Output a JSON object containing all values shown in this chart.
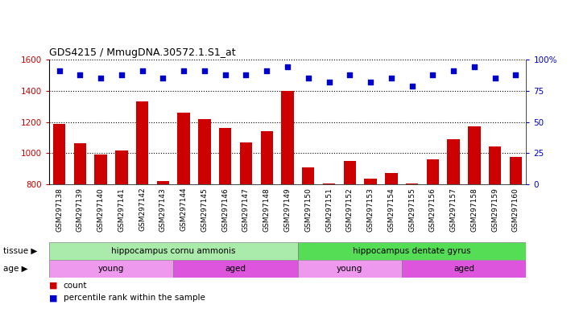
{
  "title": "GDS4215 / MmugDNA.30572.1.S1_at",
  "samples": [
    "GSM297138",
    "GSM297139",
    "GSM297140",
    "GSM297141",
    "GSM297142",
    "GSM297143",
    "GSM297144",
    "GSM297145",
    "GSM297146",
    "GSM297147",
    "GSM297148",
    "GSM297149",
    "GSM297150",
    "GSM297151",
    "GSM297152",
    "GSM297153",
    "GSM297154",
    "GSM297155",
    "GSM297156",
    "GSM297157",
    "GSM297158",
    "GSM297159",
    "GSM297160"
  ],
  "counts": [
    1190,
    1065,
    990,
    1020,
    1330,
    820,
    1260,
    1220,
    1160,
    1070,
    1140,
    1400,
    910,
    805,
    950,
    835,
    875,
    808,
    960,
    1090,
    1170,
    1045,
    975
  ],
  "percentiles": [
    91,
    88,
    85,
    88,
    91,
    85,
    91,
    91,
    88,
    88,
    91,
    94,
    85,
    82,
    88,
    82,
    85,
    79,
    88,
    91,
    94,
    85,
    88
  ],
  "ylim_left": [
    800,
    1600
  ],
  "ylim_right": [
    0,
    100
  ],
  "yticks_left": [
    800,
    1000,
    1200,
    1400,
    1600
  ],
  "yticks_right": [
    0,
    25,
    50,
    75,
    100
  ],
  "bar_color": "#cc0000",
  "dot_color": "#0000cc",
  "tissue_groups": [
    {
      "label": "hippocampus cornu ammonis",
      "start": 0,
      "end": 12,
      "color": "#aaeaaa"
    },
    {
      "label": "hippocampus dentate gyrus",
      "start": 12,
      "end": 23,
      "color": "#55dd55"
    }
  ],
  "age_groups": [
    {
      "label": "young",
      "start": 0,
      "end": 6,
      "color": "#ee99ee"
    },
    {
      "label": "aged",
      "start": 6,
      "end": 12,
      "color": "#dd55dd"
    },
    {
      "label": "young",
      "start": 12,
      "end": 17,
      "color": "#ee99ee"
    },
    {
      "label": "aged",
      "start": 17,
      "end": 23,
      "color": "#dd55dd"
    }
  ],
  "xtick_bg": "#d0d0d0",
  "legend_count_color": "#cc0000",
  "legend_dot_color": "#0000cc"
}
